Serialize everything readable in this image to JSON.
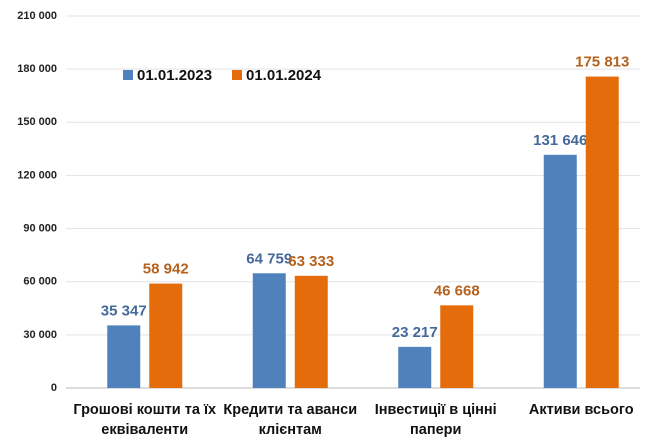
{
  "chart_data": {
    "type": "bar",
    "categories": [
      "Грошові кошти та їх еквіваленти",
      "Кредити та аванси клієнтам",
      "Інвестиції в цінні папери",
      "Активи всього"
    ],
    "series": [
      {
        "name": "01.01.2023",
        "color": "#4f81bd",
        "values": [
          35347,
          64759,
          23217,
          131646
        ],
        "value_labels": [
          "35 347",
          "64 759",
          "23 217",
          "131 646"
        ]
      },
      {
        "name": "01.01.2024",
        "color": "#e46c0a",
        "values": [
          58942,
          63333,
          46668,
          175813
        ],
        "value_labels": [
          "58 942",
          "63 333",
          "46 668",
          "175 813"
        ]
      }
    ],
    "ylim": [
      0,
      210000
    ],
    "yticks": [
      0,
      {
        "value": 30000,
        "label": "30 000"
      },
      {
        "value": 60000,
        "label": "60 000"
      },
      {
        "value": 90000,
        "label": "90 000"
      },
      {
        "value": 120000,
        "label": "120 000"
      },
      {
        "value": 150000,
        "label": "150 000"
      },
      {
        "value": 180000,
        "label": "180 000"
      },
      {
        "value": 210000,
        "label": "210 000"
      }
    ],
    "grid": true,
    "legend": "top-left"
  }
}
